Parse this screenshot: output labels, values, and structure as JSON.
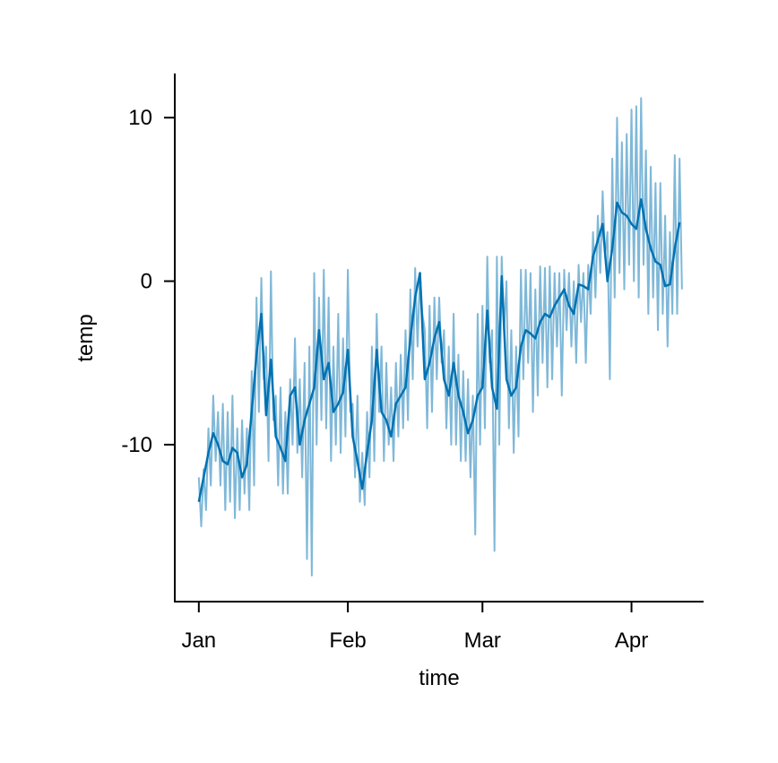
{
  "chart_data": {
    "type": "line",
    "x_label": "time",
    "y_label": "temp",
    "xlim": [
      -4,
      106
    ],
    "xticks": [
      {
        "value": 1,
        "label": "Jan"
      },
      {
        "value": 32,
        "label": "Feb"
      },
      {
        "value": 60,
        "label": "Mar"
      },
      {
        "value": 91,
        "label": "Apr"
      }
    ],
    "ylim": [
      -19.6,
      12.7
    ],
    "yticks": [
      -10,
      0,
      10
    ],
    "grid": false,
    "series": [
      {
        "color": "#0072B2",
        "opacity": 0.5,
        "width": 2,
        "x": [
          1,
          1.5,
          2,
          2.5,
          3,
          3.5,
          4,
          4.5,
          5,
          5.5,
          6,
          6.5,
          7,
          7.5,
          8,
          8.5,
          9,
          9.5,
          10,
          10.5,
          11,
          11.5,
          12,
          12.5,
          13,
          13.5,
          14,
          14.5,
          15,
          15.5,
          16,
          16.5,
          17,
          17.5,
          18,
          18.5,
          19,
          19.5,
          20,
          20.5,
          21,
          21.5,
          22,
          22.5,
          23,
          23.5,
          24,
          24.5,
          25,
          25.5,
          26,
          26.5,
          27,
          27.5,
          28,
          28.5,
          29,
          29.5,
          30,
          30.5,
          31,
          31.5,
          32,
          32.5,
          33,
          33.5,
          34,
          34.5,
          35,
          35.5,
          36,
          36.5,
          37,
          37.5,
          38,
          38.5,
          39,
          39.5,
          40,
          40.5,
          41,
          41.5,
          42,
          42.5,
          43,
          43.5,
          44,
          44.5,
          45,
          45.5,
          46,
          46.5,
          47,
          47.5,
          48,
          48.5,
          49,
          49.5,
          50,
          50.5,
          51,
          51.5,
          52,
          52.5,
          53,
          53.5,
          54,
          54.5,
          55,
          55.5,
          56,
          56.5,
          57,
          57.5,
          58,
          58.5,
          59,
          59.5,
          60,
          60.5,
          61,
          61.5,
          62,
          62.5,
          63,
          63.5,
          64,
          64.5,
          65,
          65.5,
          66,
          66.5,
          67,
          67.5,
          68,
          68.5,
          69,
          69.5,
          70,
          70.5,
          71,
          71.5,
          72,
          72.5,
          73,
          73.5,
          74,
          74.5,
          75,
          75.5,
          76,
          76.5,
          77,
          77.5,
          78,
          78.5,
          79,
          79.5,
          80,
          80.5,
          81,
          81.5,
          82,
          82.5,
          83,
          83.5,
          84,
          84.5,
          85,
          85.5,
          86,
          86.5,
          87,
          87.5,
          88,
          88.5,
          89,
          89.5,
          90,
          90.5,
          91,
          91.5,
          92,
          92.5,
          93,
          93.5,
          94,
          94.5,
          95,
          95.5,
          96,
          96.5,
          97,
          97.5,
          98,
          98.5,
          99,
          99.5,
          100,
          100.5,
          101,
          101.5
        ],
        "values": [
          -12,
          -15,
          -11.5,
          -14,
          -9,
          -12.5,
          -7,
          -11,
          -8,
          -12.5,
          -7.5,
          -14,
          -8,
          -13.5,
          -7,
          -14.5,
          -9,
          -14,
          -8.5,
          -13,
          -9,
          -14,
          -5.5,
          -12.5,
          -1,
          -8,
          0.2,
          -6,
          -4,
          -11,
          0.6,
          -8.5,
          -7,
          -12.5,
          -6.5,
          -13,
          -8,
          -13,
          -6,
          -10,
          -3.5,
          -10.5,
          -6,
          -12,
          -5,
          -17,
          -4,
          -18,
          0.5,
          -10,
          -1,
          -8.5,
          0.7,
          -9,
          -1,
          -11,
          -4,
          -10,
          -2,
          -10.5,
          -3.5,
          -9.5,
          0.7,
          -8,
          -7.5,
          -12,
          -7,
          -13.5,
          -10.5,
          -13.7,
          -8,
          -12,
          -4,
          -11,
          -2,
          -8,
          -4,
          -11,
          -5,
          -10,
          -6.5,
          -11,
          -5,
          -9.5,
          -4.5,
          -9,
          -3,
          -8.5,
          -0.5,
          -6,
          0.8,
          -4,
          0.5,
          -2,
          -3,
          -9,
          -1.5,
          -8,
          -1,
          -6,
          -1,
          -5,
          -3,
          -9,
          -4,
          -10,
          -2,
          -10,
          -4.5,
          -11,
          -5.5,
          -11,
          -6,
          -12,
          -7,
          -15.5,
          -2,
          -10,
          -1.5,
          -9,
          1.5,
          -5,
          -3,
          -16.5,
          1.5,
          -10,
          1.5,
          -3,
          0,
          -9,
          -3,
          -10.5,
          -4,
          -9.5,
          0.7,
          -6,
          0.7,
          -5,
          0.5,
          -8,
          -0.5,
          -7,
          0.9,
          -5,
          0.8,
          -6.5,
          0.9,
          -6,
          0.5,
          -4,
          0.5,
          -7,
          0.7,
          -3,
          0.5,
          -4,
          0,
          -5,
          1,
          -2.5,
          0.5,
          -5,
          1,
          -2,
          3,
          -1,
          4,
          0.5,
          5.5,
          1.5,
          3,
          -6,
          7.5,
          -1,
          10,
          0.5,
          8.5,
          -0.5,
          9,
          1,
          10.5,
          0,
          10.7,
          -1,
          11.2,
          1,
          8,
          -2,
          7,
          -1,
          6,
          -3,
          6,
          -2,
          4,
          -4,
          3,
          -2,
          7.7,
          -2,
          7.5,
          -0.5
        ]
      },
      {
        "color": "#0072B2",
        "opacity": 1,
        "width": 2.5,
        "x": [
          1,
          2,
          3,
          4,
          5,
          6,
          7,
          8,
          9,
          10,
          11,
          12,
          13,
          14,
          15,
          16,
          17,
          18,
          19,
          20,
          21,
          22,
          23,
          24,
          25,
          26,
          27,
          28,
          29,
          30,
          31,
          32,
          33,
          34,
          35,
          36,
          37,
          38,
          39,
          40,
          41,
          42,
          43,
          44,
          45,
          46,
          47,
          48,
          49,
          50,
          51,
          52,
          53,
          54,
          55,
          56,
          57,
          58,
          59,
          60,
          61,
          62,
          63,
          64,
          65,
          66,
          67,
          68,
          69,
          70,
          71,
          72,
          73,
          74,
          75,
          76,
          77,
          78,
          79,
          80,
          81,
          82,
          83,
          84,
          85,
          86,
          87,
          88,
          89,
          90,
          91,
          92,
          93,
          94,
          95,
          96,
          97,
          98,
          99,
          100,
          101
        ],
        "values": [
          -13.5,
          -12,
          -10.5,
          -9.3,
          -10,
          -11,
          -11.2,
          -10.2,
          -10.5,
          -12,
          -11.2,
          -8,
          -4.5,
          -2,
          -8.2,
          -4.8,
          -9.5,
          -10.2,
          -11,
          -7,
          -6.5,
          -10,
          -8.5,
          -7.5,
          -6.5,
          -3,
          -6,
          -5,
          -8,
          -7.5,
          -6.8,
          -4.2,
          -9.5,
          -11,
          -12.7,
          -10.5,
          -8.5,
          -4.2,
          -8,
          -8.5,
          -9.5,
          -7.5,
          -7,
          -6.5,
          -3.5,
          -1,
          0.5,
          -6,
          -5,
          -3.5,
          -2.5,
          -6,
          -7,
          -5,
          -7,
          -8,
          -9.3,
          -8.5,
          -7,
          -6.5,
          -1.8,
          -6.5,
          -7.8,
          0.3,
          -6,
          -7,
          -6.5,
          -4,
          -3,
          -3.2,
          -3.5,
          -2.5,
          -2,
          -2.2,
          -1.5,
          -1,
          -0.5,
          -1.5,
          -2,
          -0.2,
          -0.3,
          -0.5,
          1.5,
          2.5,
          3.5,
          0,
          2,
          4.8,
          4.2,
          4,
          3.5,
          3.2,
          5,
          3.2,
          2,
          1.2,
          1,
          -0.3,
          -0.2,
          2,
          3.6
        ]
      }
    ]
  }
}
